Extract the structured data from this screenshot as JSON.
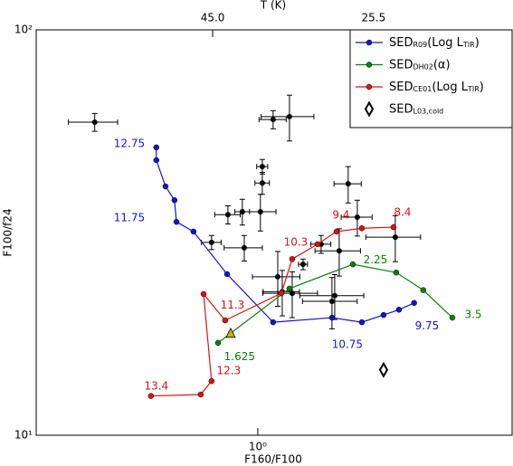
{
  "chart_data": {
    "type": "scatter",
    "xlabel": "F160/F100",
    "ylabel": "F100/f24",
    "x2label": "T (K)",
    "log_x": true,
    "log_y": true,
    "xlim": [
      0.284,
      4.24
    ],
    "ylim": [
      10,
      100
    ],
    "xticks": [
      {
        "value": 1,
        "label": "10⁰"
      }
    ],
    "yticks": [
      {
        "value": 10,
        "label": "10¹"
      },
      {
        "value": 100,
        "label": "10²"
      }
    ],
    "x2ticks": [
      {
        "value": 0.774,
        "label": "45.0"
      },
      {
        "value": 1.93,
        "label": "25.5"
      }
    ],
    "legend": "upper right",
    "series": [
      {
        "name": [
          {
            "text": "SED"
          },
          {
            "text": "R09",
            "sub": true
          },
          {
            "text": "(Log L"
          },
          {
            "text": "TIR",
            "sub": true
          },
          {
            "text": ")"
          }
        ],
        "color": "#1414cc",
        "marker": "circle",
        "x": [
          0.562,
          0.562,
          0.592,
          0.623,
          0.63,
          0.694,
          0.84,
          1.091,
          1.524,
          1.806,
          2.043,
          2.23,
          2.43
        ],
        "values": [
          51.3,
          47.7,
          41.1,
          38.0,
          33.6,
          31.8,
          24.97,
          19.0,
          19.5,
          19.0,
          19.8,
          20.4,
          21.2
        ],
        "labels": [
          {
            "text": "12.75",
            "x": 0.482,
            "y": 52.3
          },
          {
            "text": "11.75",
            "x": 0.482,
            "y": 34.3
          },
          {
            "text": "10.75",
            "x": 1.663,
            "y": 16.7
          },
          {
            "text": "9.75",
            "x": 2.615,
            "y": 18.6
          }
        ]
      },
      {
        "name": [
          {
            "text": "SED"
          },
          {
            "text": "DH02",
            "sub": true
          },
          {
            "text": "(α)"
          }
        ],
        "color": "#0a820a",
        "marker": "circle",
        "x": [
          0.798,
          1.197,
          1.716,
          2.195,
          2.56,
          3.02
        ],
        "values": [
          16.9,
          23.0,
          26.4,
          25.2,
          22.8,
          19.5
        ],
        "labels": [
          {
            "text": "2.25",
            "x": 1.951,
            "y": 27.0
          },
          {
            "text": "3.5",
            "x": 3.4,
            "y": 19.8
          },
          {
            "text": "1.625",
            "x": 0.902,
            "y": 15.6
          }
        ]
      },
      {
        "name": [
          {
            "text": "SED"
          },
          {
            "text": "CE01",
            "sub": true
          },
          {
            "text": "(Log L"
          },
          {
            "text": "TIR",
            "sub": true
          },
          {
            "text": ")"
          }
        ],
        "color": "#dd1111",
        "marker": "circle",
        "x": [
          0.545,
          0.723,
          0.769,
          0.735,
          0.831,
          1.143,
          1.216,
          1.404,
          1.564,
          1.806,
          2.162
        ],
        "values": [
          12.5,
          12.6,
          13.6,
          22.3,
          19.2,
          22.4,
          27.2,
          29.6,
          31.8,
          32.4,
          32.6
        ],
        "labels": [
          {
            "text": "13.4",
            "x": 0.562,
            "y": 13.2
          },
          {
            "text": "12.3",
            "x": 0.848,
            "y": 14.4
          },
          {
            "text": "11.3",
            "x": 0.866,
            "y": 20.9
          },
          {
            "text": "10.3",
            "x": 1.241,
            "y": 29.9
          },
          {
            "text": "9.4",
            "x": 1.605,
            "y": 34.9
          },
          {
            "text": "8.4",
            "x": 2.276,
            "y": 35.4
          }
        ]
      },
      {
        "name": [
          {
            "text": "SED"
          },
          {
            "text": "L03,cold",
            "sub": true
          }
        ],
        "color": "#000000",
        "marker": "diamond",
        "line": false,
        "x": [
          2.043
        ],
        "values": [
          14.5
        ]
      }
    ],
    "extra_points": [
      {
        "x": 0.857,
        "y": 17.8,
        "color": "#c8b400",
        "marker": "triangle"
      }
    ],
    "observations": {
      "color": "#000000",
      "x": [
        0.396,
        1.091,
        1.197,
        1.026,
        1.026,
        1.671,
        0.844,
        0.916,
        1.015,
        0.769,
        0.926,
        1.76,
        1.433,
        1.588,
        2.184,
        1.293,
        1.12,
        1.149,
        1.216,
        1.548,
        1.524
      ],
      "values": [
        59.2,
        60.1,
        61.1,
        46.0,
        41.9,
        41.7,
        35.0,
        35.6,
        35.6,
        29.9,
        29.0,
        34.5,
        29.6,
        28.5,
        30.8,
        26.4,
        24.6,
        22.6,
        22.4,
        22.1,
        21.4
      ],
      "xerr": [
        0.055,
        0.084,
        0.178,
        0.032,
        0.042,
        0.129,
        0.061,
        0.038,
        0.094,
        0.043,
        0.1,
        0.154,
        0.081,
        0.204,
        0.337,
        0.033,
        0.15,
        0.118,
        0.188,
        0.278,
        0.235
      ],
      "yerr": [
        3.0,
        3.1,
        7.9,
        1.9,
        2.6,
        4.3,
        1.8,
        2.6,
        3.7,
        1.2,
        2.1,
        3.5,
        1.5,
        3.8,
        4.0,
        0.8,
        3.8,
        2.9,
        2.9,
        2.8,
        3.1
      ]
    }
  }
}
